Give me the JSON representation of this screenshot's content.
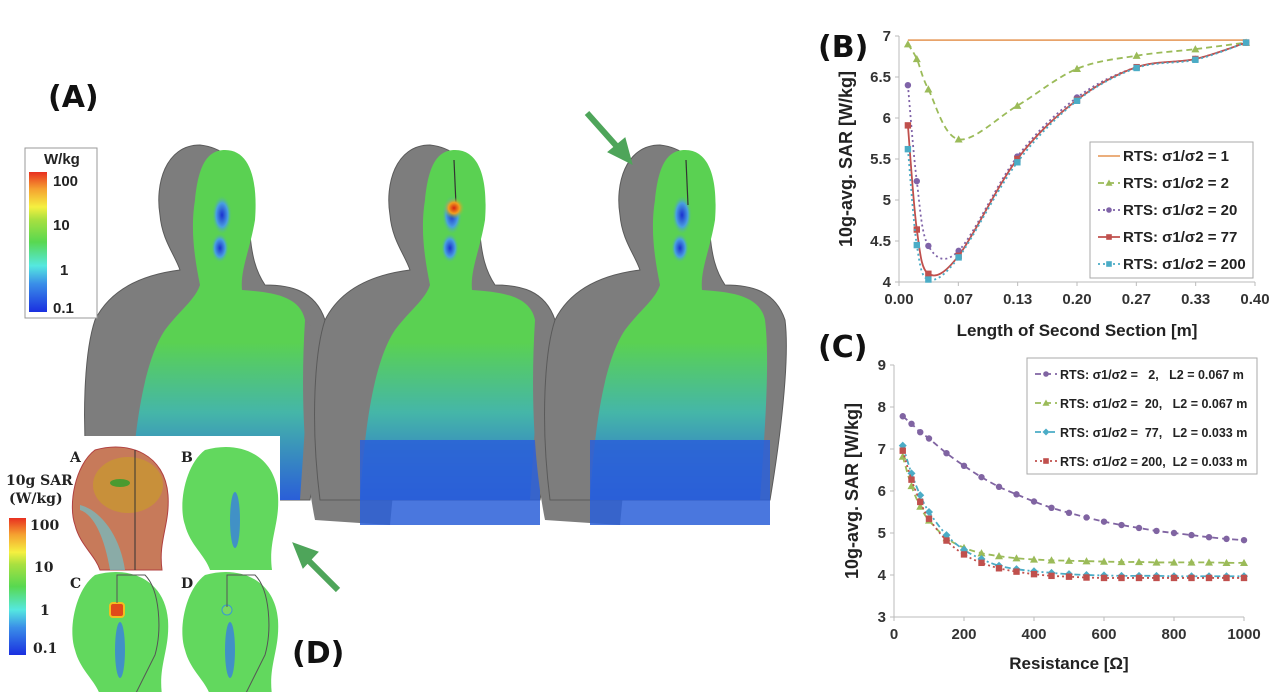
{
  "panels": {
    "a": "(A)",
    "b": "(B)",
    "c": "(C)",
    "d": "(D)"
  },
  "colorbar_a": {
    "unit": "W/kg",
    "ticks": [
      "100",
      "10",
      "1",
      "0.1"
    ]
  },
  "inset_d": {
    "title_line1": "10g SAR",
    "title_line2": "(W/kg)",
    "ticks": [
      "100",
      "10",
      "1",
      "0.1"
    ],
    "sub_labels": [
      "A",
      "B",
      "C",
      "D"
    ]
  },
  "colors": {
    "arrow": "#4ea55a",
    "mesh": "#7a7a7a",
    "sar_green": "#5ad152",
    "sar_blue": "#2850d8",
    "hotspot": "#e8401c"
  },
  "chart_data": [
    {
      "type": "line",
      "panel": "(B)",
      "xlabel": "Length of Second Section [m]",
      "ylabel": "10g-avg. SAR [W/kg]",
      "xlim": [
        0,
        0.4
      ],
      "ylim": [
        4,
        7
      ],
      "xticks": [
        "0.00",
        "0.07",
        "0.13",
        "0.20",
        "0.27",
        "0.33",
        "0.40"
      ],
      "yticks": [
        "4",
        "4.5",
        "5",
        "5.5",
        "6",
        "6.5",
        "7"
      ],
      "grid": false,
      "legend": "center-right",
      "series": [
        {
          "name": "RTS: σ1/σ2 = 1",
          "color": "#E8A36A",
          "marker": "none",
          "dash": "solid",
          "x": [
            0.01,
            0.39
          ],
          "y": [
            6.95,
            6.95
          ]
        },
        {
          "name": "RTS: σ1/σ2 = 2",
          "color": "#9BBB59",
          "marker": "triangle",
          "dash": "dashed",
          "x": [
            0.01,
            0.02,
            0.033,
            0.067,
            0.133,
            0.2,
            0.267,
            0.333,
            0.39
          ],
          "y": [
            6.9,
            6.72,
            6.35,
            5.74,
            6.15,
            6.6,
            6.76,
            6.84,
            6.92
          ]
        },
        {
          "name": "RTS: σ1/σ2 = 20",
          "color": "#7F63A8",
          "marker": "circle",
          "dash": "dotted",
          "x": [
            0.01,
            0.02,
            0.033,
            0.067,
            0.133,
            0.2,
            0.267,
            0.333,
            0.39
          ],
          "y": [
            6.4,
            5.23,
            4.44,
            4.38,
            5.53,
            6.25,
            6.62,
            6.72,
            6.92
          ]
        },
        {
          "name": "RTS: σ1/σ2 = 77",
          "color": "#C0504D",
          "marker": "square",
          "dash": "solid",
          "x": [
            0.01,
            0.02,
            0.033,
            0.067,
            0.133,
            0.2,
            0.267,
            0.333,
            0.39
          ],
          "y": [
            5.91,
            4.64,
            4.1,
            4.32,
            5.5,
            6.22,
            6.62,
            6.72,
            6.92
          ]
        },
        {
          "name": "RTS: σ1/σ2 = 200",
          "color": "#4BACC6",
          "marker": "square",
          "dash": "dotted",
          "x": [
            0.01,
            0.02,
            0.033,
            0.067,
            0.133,
            0.2,
            0.267,
            0.333,
            0.39
          ],
          "y": [
            5.62,
            4.45,
            4.03,
            4.3,
            5.46,
            6.21,
            6.61,
            6.71,
            6.92
          ]
        }
      ]
    },
    {
      "type": "line",
      "panel": "(C)",
      "xlabel": "Resistance [Ω]",
      "ylabel": "10g-avg. SAR [W/kg]",
      "xlim": [
        0,
        1000
      ],
      "ylim": [
        3,
        9
      ],
      "xticks": [
        "0",
        "200",
        "400",
        "600",
        "800",
        "1000"
      ],
      "yticks": [
        "3",
        "4",
        "5",
        "6",
        "7",
        "8",
        "9"
      ],
      "grid": false,
      "legend": "top-right",
      "x": [
        25,
        50,
        75,
        100,
        150,
        200,
        250,
        300,
        350,
        400,
        450,
        500,
        550,
        600,
        650,
        700,
        750,
        800,
        850,
        900,
        950,
        1000
      ],
      "series": [
        {
          "name": "RTS: σ1/σ2 =   2,   L2 = 0.067 m",
          "color": "#8064A2",
          "marker": "circle",
          "dash": "dashed",
          "y": [
            7.78,
            7.6,
            7.4,
            7.25,
            6.9,
            6.6,
            6.33,
            6.1,
            5.92,
            5.75,
            5.6,
            5.48,
            5.37,
            5.27,
            5.19,
            5.12,
            5.05,
            5.0,
            4.95,
            4.9,
            4.86,
            4.83
          ]
        },
        {
          "name": "RTS: σ1/σ2 =  20,   L2 = 0.067 m",
          "color": "#9BBB59",
          "marker": "triangle",
          "dash": "dashed",
          "y": [
            6.82,
            6.12,
            5.63,
            5.3,
            4.88,
            4.65,
            4.52,
            4.45,
            4.4,
            4.37,
            4.35,
            4.34,
            4.33,
            4.32,
            4.31,
            4.31,
            4.3,
            4.3,
            4.3,
            4.3,
            4.29,
            4.29
          ]
        },
        {
          "name": "RTS: σ1/σ2 =  77,   L2 = 0.033 m",
          "color": "#4BACC6",
          "marker": "diamond",
          "dash": "dashdot",
          "y": [
            7.08,
            6.42,
            5.9,
            5.5,
            4.95,
            4.6,
            4.38,
            4.22,
            4.14,
            4.09,
            4.05,
            4.02,
            4.0,
            3.99,
            3.98,
            3.98,
            3.98,
            3.97,
            3.97,
            3.97,
            3.97,
            3.97
          ]
        },
        {
          "name": "RTS: σ1/σ2 = 200,  L2 = 0.033 m",
          "color": "#C0504D",
          "marker": "square",
          "dash": "dotted",
          "y": [
            6.96,
            6.27,
            5.74,
            5.34,
            4.82,
            4.49,
            4.29,
            4.16,
            4.08,
            4.02,
            3.98,
            3.96,
            3.94,
            3.93,
            3.93,
            3.93,
            3.93,
            3.93,
            3.93,
            3.93,
            3.93,
            3.93
          ]
        }
      ]
    }
  ]
}
